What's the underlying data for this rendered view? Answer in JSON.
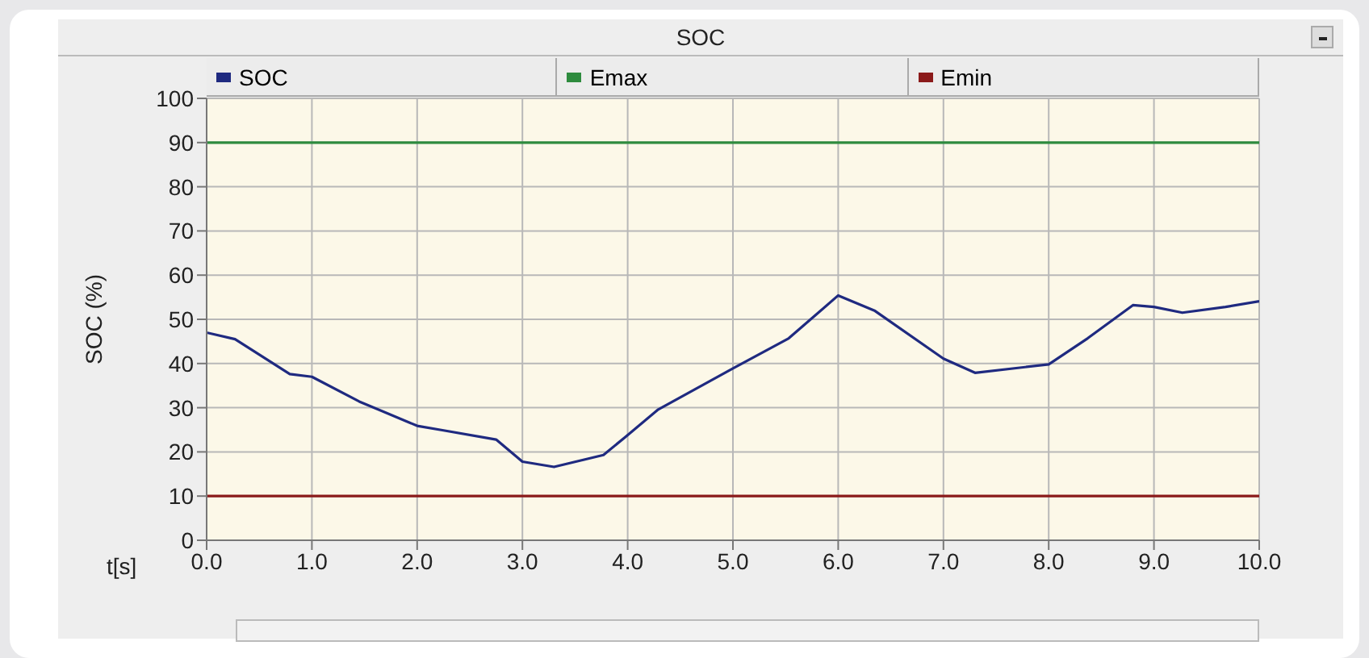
{
  "chart_data": {
    "type": "line",
    "title": "SOC",
    "xlabel": "t[s]",
    "ylabel": "SOC (%)",
    "xlim": [
      0,
      10
    ],
    "xticks": [
      {
        "value": 0,
        "label": "0.0"
      },
      {
        "value": 1,
        "label": "1.0"
      },
      {
        "value": 2,
        "label": "2.0"
      },
      {
        "value": 3,
        "label": "3.0"
      },
      {
        "value": 4,
        "label": "4.0"
      },
      {
        "value": 5,
        "label": "5.0"
      },
      {
        "value": 6,
        "label": "6.0"
      },
      {
        "value": 7,
        "label": "7.0"
      },
      {
        "value": 8,
        "label": "8.0"
      },
      {
        "value": 9,
        "label": "9.0"
      },
      {
        "value": 10,
        "label": "10.0"
      }
    ],
    "ylim": [
      0,
      100
    ],
    "yticks": [
      0,
      10,
      20,
      30,
      40,
      50,
      60,
      70,
      80,
      90,
      100
    ],
    "grid": true,
    "legend": "top",
    "series": [
      {
        "name": "SOC",
        "color": "#1f2a80",
        "x": [
          0,
          0.27,
          0.79,
          1.0,
          1.45,
          2.0,
          2.24,
          2.75,
          3.0,
          3.3,
          3.77,
          3.98,
          4.29,
          5.0,
          5.53,
          6.0,
          6.35,
          7.0,
          7.3,
          8.0,
          8.37,
          8.8,
          9.0,
          9.27,
          9.68,
          10
        ],
        "values": [
          47,
          45.5,
          37.6,
          37,
          31.4,
          25.9,
          24.9,
          22.8,
          17.8,
          16.6,
          19.3,
          23.4,
          29.6,
          38.9,
          45.7,
          55.4,
          51.9,
          41.1,
          37.9,
          39.8,
          45.7,
          53.2,
          52.8,
          51.5,
          52.8,
          54.1
        ]
      },
      {
        "name": "Emax",
        "color": "#2e8b3e",
        "x": [
          0,
          10
        ],
        "values": [
          90,
          90
        ]
      },
      {
        "name": "Emin",
        "color": "#8b1a1a",
        "x": [
          0,
          10
        ],
        "values": [
          10,
          10
        ]
      }
    ]
  }
}
